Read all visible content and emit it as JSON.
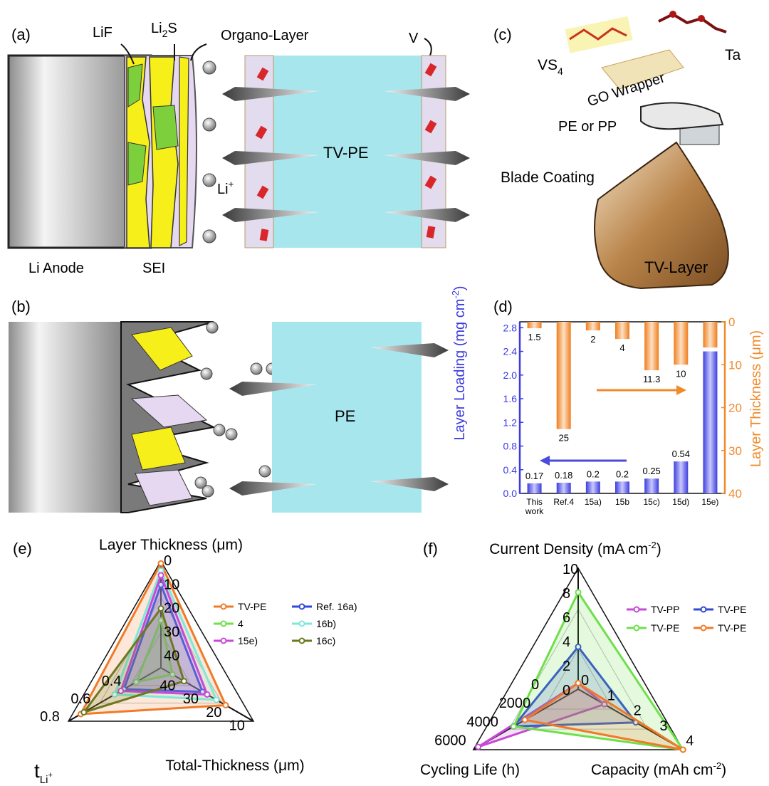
{
  "panels": {
    "a": {
      "label": "(a)",
      "lif": "LiF",
      "li2s_main": "Li",
      "li2s_sub": "2",
      "li2s_tail": "S",
      "organo": "Organo-Layer",
      "v": "V",
      "li_ion": "Li",
      "li_ion_sup": "+",
      "tvpe": "TV-PE",
      "li_anode": "Li Anode",
      "sei": "SEI"
    },
    "b": {
      "label": "(b)",
      "pe": "PE"
    },
    "c": {
      "label": "(c)",
      "vs4_main": "VS",
      "vs4_sub": "4",
      "ta": "Ta",
      "go_wrapper": "GO Wrapper",
      "pe_or_pp": "PE or PP",
      "blade": "Blade Coating",
      "tv_layer": "TV-Layer"
    },
    "d": {
      "label": "(d)"
    },
    "e": {
      "label": "(e)"
    },
    "f": {
      "label": "(f)"
    }
  },
  "chart_data": [
    {
      "id": "d",
      "type": "bar",
      "categories": [
        "This work",
        "Ref.4",
        "15a)",
        "15b",
        "15c)",
        "15d)",
        "15e)"
      ],
      "ylabel": "Layer Loading (mg cm-2)",
      "y2label": "Layer Thickness (μm)",
      "ylim": [
        0,
        2.9
      ],
      "y2lim": [
        0,
        40
      ],
      "series": [
        {
          "axis": "left",
          "values": [
            0.17,
            0.18,
            0.2,
            0.2,
            0.25,
            0.54,
            2.4
          ],
          "labels": [
            "0.17",
            "0.18",
            "0.2",
            "0.2",
            "0.25",
            "0.54",
            ""
          ],
          "color": "#3a3ae0"
        },
        {
          "axis": "right",
          "values": [
            1.5,
            25,
            2,
            4,
            11.3,
            10,
            6
          ],
          "labels": [
            "1.5",
            "25",
            "2",
            "4",
            "11.3",
            "10",
            ""
          ],
          "color": "#f08a2c"
        }
      ],
      "yticks": [
        "0.0",
        "0.4",
        "0.8",
        "1.2",
        "1.6",
        "2.0",
        "2.4",
        "2.8"
      ],
      "y2ticks": [
        "0",
        "10",
        "20",
        "30",
        "40"
      ]
    },
    {
      "id": "e",
      "type": "radar",
      "axes": [
        "Layer Thickness (μm)",
        "Total-Thickness (μm)",
        "tLi+"
      ],
      "ticks": {
        "layer": [
          "0",
          "10",
          "20",
          "30",
          "40"
        ],
        "total": [
          "10",
          "20",
          "30",
          "40"
        ],
        "tli": [
          "0.4",
          "0.6",
          "0.8"
        ]
      },
      "series": [
        {
          "name": "TV-PE",
          "color": "#f07a28",
          "values": [
            1,
            17,
            0.72
          ]
        },
        {
          "name": "Ref. 16a)",
          "color": "#2f48d8",
          "values": [
            10,
            27,
            0.44
          ]
        },
        {
          "name": "4",
          "color": "#6ee04a",
          "values": [
            25,
            40,
            0.36
          ]
        },
        {
          "name": "16b)",
          "color": "#7ee8d8",
          "values": [
            4,
            21,
            0.5
          ]
        },
        {
          "name": "15e)",
          "color": "#c64ad6",
          "values": [
            6,
            25,
            0.46
          ]
        },
        {
          "name": "16c)",
          "color": "#6b7a1e",
          "values": [
            20,
            35,
            0.7
          ]
        }
      ]
    },
    {
      "id": "f",
      "type": "radar",
      "axes": [
        "Current Density (mA cm-2)",
        "Capacity (mAh cm-2)",
        "Cycling Life (h)"
      ],
      "ticks": {
        "current": [
          "0",
          "2",
          "4",
          "6",
          "8",
          "10"
        ],
        "capacity": [
          "0",
          "1",
          "2",
          "3",
          "4"
        ],
        "cycling": [
          "0",
          "2000",
          "4000",
          "6000"
        ]
      },
      "series": [
        {
          "name": "TV-PP",
          "color": "#c64ad6",
          "values": [
            0.5,
            1,
            6200
          ]
        },
        {
          "name": "TV-PE",
          "color": "#2f48d8",
          "values": [
            3.5,
            2.2,
            4000
          ]
        },
        {
          "name": "TV-PE",
          "color": "#6ee04a",
          "values": [
            8,
            4,
            4000
          ]
        },
        {
          "name": "TV-PE",
          "color": "#f07a28",
          "values": [
            0.5,
            4,
            3300
          ]
        }
      ]
    }
  ]
}
